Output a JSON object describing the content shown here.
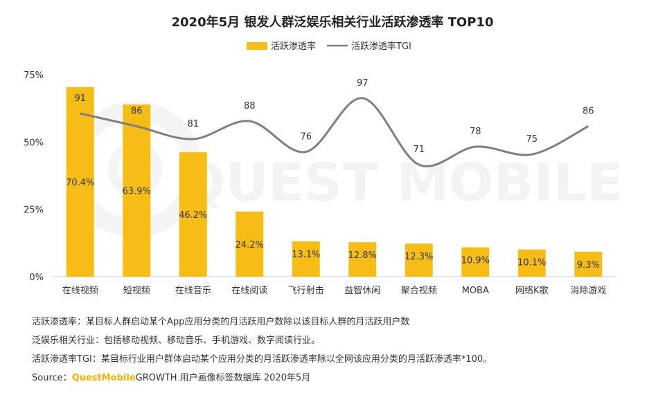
{
  "chart_data": {
    "type": "bar",
    "title": "2020年5月 银发人群泛娱乐相关行业活跃渗透率 TOP10",
    "categories": [
      "在线视频",
      "短视频",
      "在线音乐",
      "在线阅读",
      "飞行射击",
      "益智休闲",
      "聚合视频",
      "MOBA",
      "网络K歌",
      "消除游戏"
    ],
    "series": [
      {
        "name": "活跃渗透率",
        "type": "bar",
        "values": [
          70.4,
          63.9,
          46.2,
          24.2,
          13.1,
          12.8,
          12.3,
          10.9,
          10.1,
          9.3
        ],
        "labels": [
          "70.4%",
          "63.9%",
          "46.2%",
          "24.2%",
          "13.1%",
          "12.8%",
          "12.3%",
          "10.9%",
          "10.1%",
          "9.3%"
        ],
        "color": "#f6bd16"
      },
      {
        "name": "活跃渗透率TGI",
        "type": "line",
        "values": [
          91,
          86,
          81,
          88,
          76,
          97,
          71,
          78,
          75,
          86
        ],
        "color": "#7f7f7f"
      }
    ],
    "y_ticks": [
      "75%",
      "50%",
      "25%",
      "0%"
    ],
    "ylim": [
      0,
      75
    ],
    "legend": "top",
    "grid": false
  },
  "watermark": "QUEST MOBILE",
  "notes": [
    "活跃渗透率：某目标人群启动某个App应用分类的月活跃用户数除以该目标人群的月活跃用户数",
    "泛娱乐相关行业：包括移动视频、移动音乐、手机游戏、数字阅读行业。",
    "活跃渗透率TGI：某目标行业用户群体启动某个应用分类的月活跃渗透率除以全网该应用分类的月活跃渗透率*100。"
  ],
  "source": {
    "prefix": "Source：",
    "brand": "QuestMobile",
    "text": "GROWTH 用户画像标签数据库 2020年5月"
  }
}
